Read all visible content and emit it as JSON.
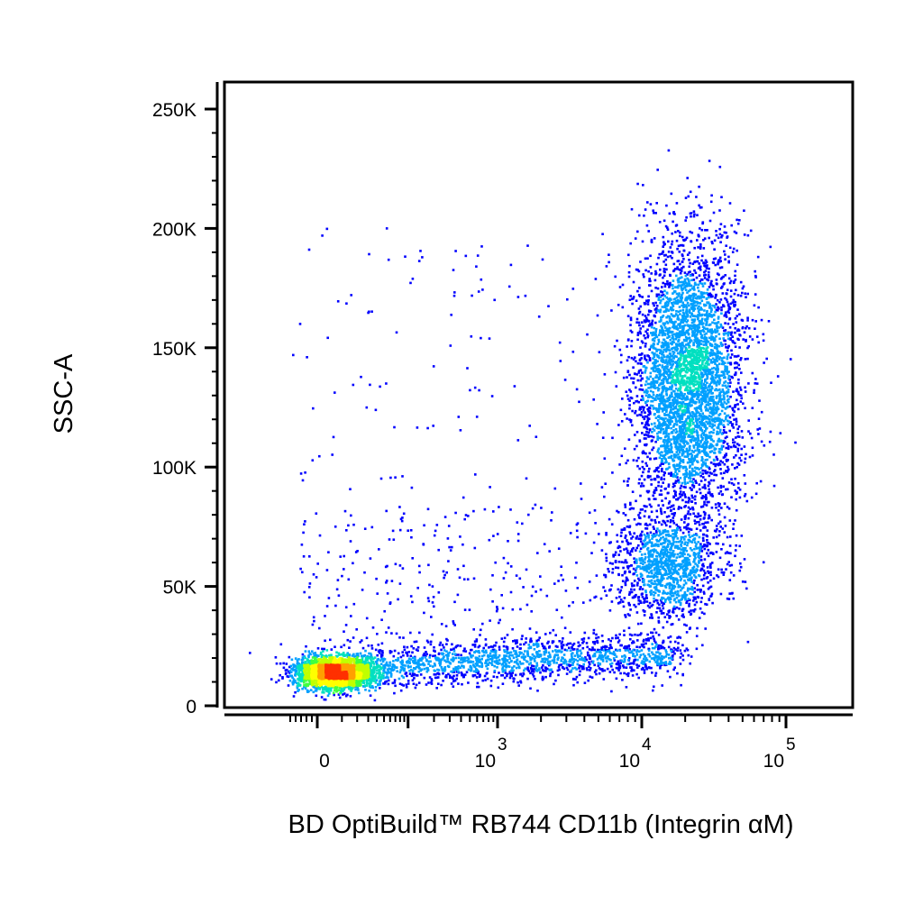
{
  "chart_data": {
    "type": "scatter",
    "title": "",
    "xlabel": "BD OptiBuild™ RB744 CD11b (Integrin αM)",
    "ylabel": "SSC-A",
    "x_scale": "biexponential",
    "y_scale": "linear",
    "xlim": [
      -600,
      150000
    ],
    "ylim": [
      -5000,
      262144
    ],
    "x_tick_labels": [
      {
        "value": 0,
        "base": "0",
        "exp": ""
      },
      {
        "value": 1000,
        "base": "10",
        "exp": "3"
      },
      {
        "value": 10000,
        "base": "10",
        "exp": "4"
      },
      {
        "value": 100000,
        "base": "10",
        "exp": "5"
      }
    ],
    "y_tick_labels": [
      {
        "value": 0,
        "label": "0"
      },
      {
        "value": 50000,
        "label": "50K"
      },
      {
        "value": 100000,
        "label": "100K"
      },
      {
        "value": 150000,
        "label": "150K"
      },
      {
        "value": 200000,
        "label": "200K"
      },
      {
        "value": 250000,
        "label": "250K"
      }
    ],
    "density_colors": [
      "#0000ff",
      "#00a0ff",
      "#00e0c0",
      "#40ff40",
      "#c0ff00",
      "#ffff00",
      "#ffa000",
      "#ff3000"
    ],
    "populations": [
      {
        "label": "",
        "x_center": 0,
        "y_center": 14000,
        "count": 2600,
        "x_spread": "narrow",
        "note": "dense red cluster"
      },
      {
        "label": "",
        "x_range": [
          100,
          8000
        ],
        "y_center": 20000,
        "count": 1500,
        "note": "horizontal band"
      },
      {
        "label": "",
        "x_center": 15000,
        "y_center": 135000,
        "y_range": [
          80000,
          230000
        ],
        "count": 4200,
        "note": "tall yellow-red cluster"
      },
      {
        "label": "",
        "x_center": 12000,
        "y_center": 58000,
        "count": 1200,
        "note": "lower green cluster"
      },
      {
        "label": "",
        "x_range": [
          0,
          60000
        ],
        "y_range": [
          30000,
          200000
        ],
        "count": 450,
        "note": "sparse scattered events"
      }
    ]
  }
}
